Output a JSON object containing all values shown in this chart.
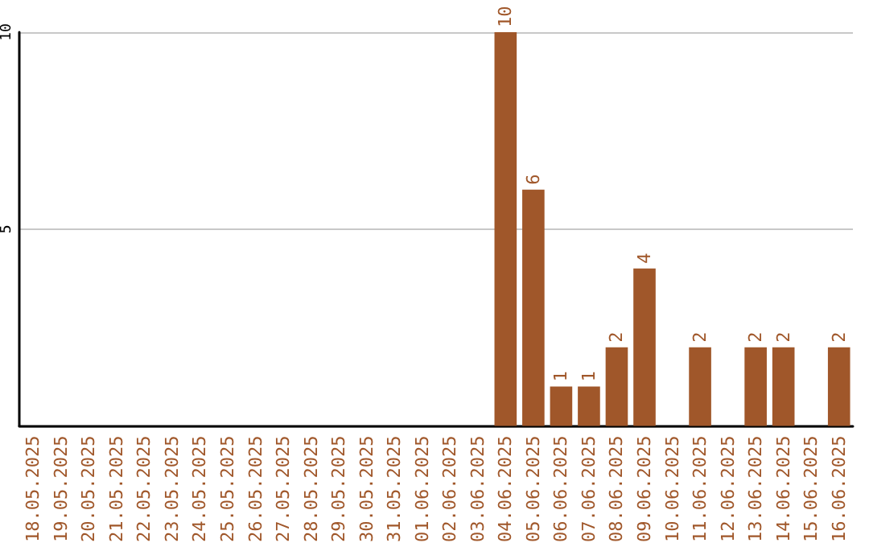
{
  "chart_data": {
    "type": "bar",
    "categories": [
      "18.05.2025",
      "19.05.2025",
      "20.05.2025",
      "21.05.2025",
      "22.05.2025",
      "23.05.2025",
      "24.05.2025",
      "25.05.2025",
      "26.05.2025",
      "27.05.2025",
      "28.05.2025",
      "29.05.2025",
      "30.05.2025",
      "31.05.2025",
      "01.06.2025",
      "02.06.2025",
      "03.06.2025",
      "04.06.2025",
      "05.06.2025",
      "06.06.2025",
      "07.06.2025",
      "08.06.2025",
      "09.06.2025",
      "10.06.2025",
      "11.06.2025",
      "12.06.2025",
      "13.06.2025",
      "14.06.2025",
      "15.06.2025",
      "16.06.2025"
    ],
    "values": [
      0,
      0,
      0,
      0,
      0,
      0,
      0,
      0,
      0,
      0,
      0,
      0,
      0,
      0,
      0,
      0,
      0,
      10,
      6,
      1,
      1,
      2,
      4,
      0,
      2,
      0,
      2,
      2,
      0,
      2
    ],
    "value_labels": [
      null,
      null,
      null,
      null,
      null,
      null,
      null,
      null,
      null,
      null,
      null,
      null,
      null,
      null,
      null,
      null,
      null,
      "10",
      "6",
      "1",
      "1",
      "2",
      "4",
      null,
      "2",
      null,
      "2",
      "2",
      null,
      "2"
    ],
    "color": "#a0572a",
    "ylim": [
      0,
      10
    ],
    "yticks": [
      {
        "value": 0,
        "label": null
      },
      5,
      10
    ],
    "grid": "y"
  }
}
